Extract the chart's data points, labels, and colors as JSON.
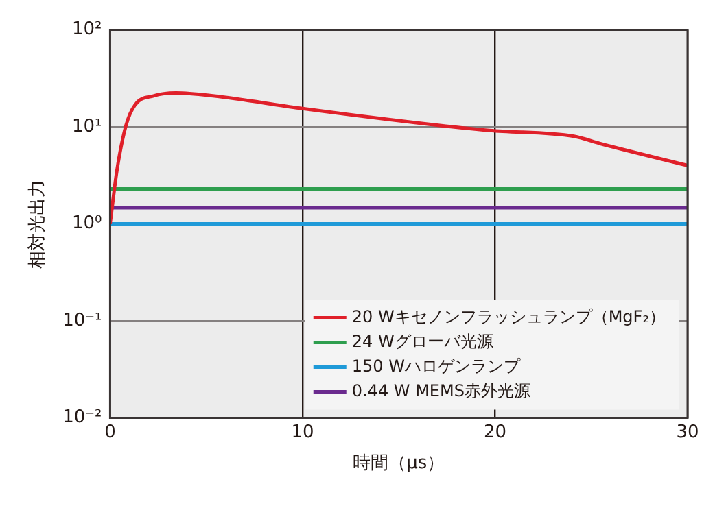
{
  "chart_data": {
    "type": "line",
    "xlabel": "時間（μs）",
    "ylabel": "相対光出力",
    "xlim": [
      0,
      30
    ],
    "xticks": [
      0,
      10,
      20,
      30
    ],
    "ylim": [
      0.01,
      100
    ],
    "yticks": [
      {
        "value": 0.01,
        "label": "10⁻²"
      },
      {
        "value": 0.1,
        "label": "10⁻¹"
      },
      {
        "value": 1,
        "label": "10⁰"
      },
      {
        "value": 10,
        "label": "10¹"
      },
      {
        "value": 100,
        "label": "10²"
      }
    ],
    "log": "y",
    "grid": true,
    "legend": "bottom right",
    "marker": "none",
    "line_style": "solid",
    "series": [
      {
        "name": "20 Wキセノンフラッシュランプ（MgF₂）",
        "color": "#e0202a",
        "x": [
          0,
          0.36,
          0.83,
          1.3,
          2.26,
          3.44,
          5.35,
          9.86,
          16.5,
          19.7,
          24.1,
          25.5,
          30
        ],
        "values": [
          1,
          3.6,
          10.4,
          16.9,
          20.9,
          22.4,
          20.9,
          15.6,
          10.7,
          9.2,
          8,
          6.7,
          4
        ]
      },
      {
        "name": "24 Wグローバ光源",
        "color": "#2e9e4e",
        "x": [
          0,
          30
        ],
        "values": [
          2.3,
          2.3
        ]
      },
      {
        "name": "150 Wハロゲンランプ",
        "color": "#1f9ad8",
        "x": [
          0,
          30
        ],
        "values": [
          1,
          1
        ]
      },
      {
        "name": "0.44 W MEMS赤外光源",
        "color": "#6a2a8e",
        "x": [
          0,
          30
        ],
        "values": [
          1.47,
          1.47
        ]
      }
    ]
  }
}
